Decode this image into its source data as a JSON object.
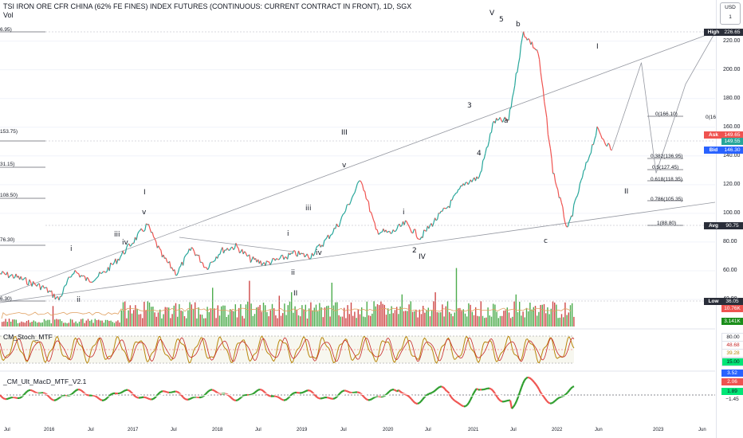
{
  "header": {
    "title": "TSI IRON ORE CFR CHINA (62% FE FINES) INDEX FUTURES (CONTINUOUS: CURRENT CONTRACT IN FRONT), 1D, SGX",
    "vol_label": "Vol"
  },
  "currency": {
    "label": "USD",
    "sub": "1"
  },
  "indicators": {
    "stoch": "CM_Stoch_MTF",
    "macd": "_CM_Ult_MacD_MTF_V2.1"
  },
  "colors": {
    "up": "#26a69a",
    "down": "#ef5350",
    "volume_up": "#2e9e2e",
    "volume_down": "#c62828",
    "trendline": "#9598a1",
    "stoch_line": "#b8860b"
  },
  "price_axis": {
    "ticks": [
      "220.00",
      "200.00",
      "180.00",
      "160.00",
      "140.00",
      "120.00",
      "100.00",
      "80.00",
      "60.00",
      "40.00"
    ],
    "tags": [
      {
        "label": "High",
        "value": "226.65",
        "color": "#2a2e39"
      },
      {
        "label": "Ask",
        "value": "149.65",
        "color": "#ef5350"
      },
      {
        "label": "",
        "value": "149.55",
        "color": "#26a69a"
      },
      {
        "label": "Bid",
        "value": "146.30",
        "color": "#2962ff"
      },
      {
        "label": "Avg",
        "value": "90.75",
        "color": "#2a2e39"
      },
      {
        "label": "Low",
        "value": "36.05",
        "color": "#2a2e39"
      }
    ],
    "volume_tags": [
      {
        "value": "10.76K",
        "color": "#ef5350"
      },
      {
        "value": "3.141K",
        "color": "#1b8e1b"
      }
    ],
    "stoch_tags": [
      {
        "value": "80.00",
        "color": "#ffffff",
        "text": "#131722"
      },
      {
        "value": "48.68",
        "color": "#ffffff",
        "text": "#c62828"
      },
      {
        "value": "39.28",
        "color": "#ffffff",
        "text": "#b8860b"
      },
      {
        "value": "15.00",
        "color": "#00e676",
        "text": "#131722"
      }
    ],
    "macd_tags": [
      {
        "value": "3.52",
        "color": "#2962ff",
        "text": "#ffffff"
      },
      {
        "value": "2.06",
        "color": "#ef5350",
        "text": "#ffffff"
      },
      {
        "value": "1.89",
        "color": "#00e676",
        "text": "#131722"
      },
      {
        "value": "−1.45",
        "color": "#ffffff",
        "text": "#131722"
      }
    ]
  },
  "time_axis": [
    "Jul",
    "2016",
    "Jul",
    "2017",
    "Jul",
    "2018",
    "Jul",
    "2019",
    "Jul",
    "2020",
    "Jul",
    "2021",
    "Jul",
    "2022",
    "Jun",
    "2023",
    "Jun"
  ],
  "left_fib_labels": [
    "6.95)",
    "153.75)",
    "31.15)",
    "108.50)",
    "76.30)",
    "6.30)"
  ],
  "fib_levels": [
    "0(166.10)",
    "0.382(136.95)",
    "0.5(127.45)",
    "0.618(118.35)",
    "0.786(105.35)",
    "1(88.80)"
  ],
  "fib_cut": "0(16",
  "wave_labels": [
    "V",
    "5",
    "b",
    "I",
    "III",
    "v",
    "v",
    "iii",
    "iii",
    "iv",
    "i",
    "ii",
    "iv",
    "i",
    "ii",
    "II",
    "iii",
    "i",
    "2",
    "IV",
    "3",
    "4",
    "a",
    "c",
    "I",
    "II"
  ],
  "chart_data": {
    "type": "line",
    "title": "TSI IRON ORE CFR CHINA (62% FE FINES) INDEX FUTURES (CONTINUOUS: CURRENT CONTRACT IN FRONT), 1D, SGX",
    "x_axis": "date",
    "y_unit": "USD",
    "series": [
      {
        "x": [
          "2015-06",
          "2015-08",
          "2015-10",
          "2015-12",
          "2016-02",
          "2016-04",
          "2016-06",
          "2016-08",
          "2016-10",
          "2016-12",
          "2017-02",
          "2017-04",
          "2017-06",
          "2017-08",
          "2017-10",
          "2017-12",
          "2018-02",
          "2018-04",
          "2018-06",
          "2018-08",
          "2018-10",
          "2018-12",
          "2019-02",
          "2019-04",
          "2019-07",
          "2019-09",
          "2019-11",
          "2020-01",
          "2020-03",
          "2020-05",
          "2020-07",
          "2020-09",
          "2020-11",
          "2021-01",
          "2021-03",
          "2021-05",
          "2021-07",
          "2021-09",
          "2021-11",
          "2022-01",
          "2022-03",
          "2022-05"
        ],
        "y": [
          58,
          56,
          52,
          48,
          40,
          60,
          53,
          58,
          68,
          80,
          92,
          70,
          58,
          76,
          62,
          74,
          77,
          68,
          65,
          68,
          72,
          70,
          80,
          93,
          124,
          88,
          86,
          93,
          83,
          95,
          106,
          121,
          125,
          164,
          165,
          226,
          212,
          130,
          88,
          125,
          158,
          144
        ]
      }
    ],
    "projection": {
      "x": [
        "2022-05",
        "2022-09",
        "2022-11",
        "2023-03",
        "2023-07"
      ],
      "y": [
        144,
        205,
        128,
        190,
        226
      ]
    },
    "ylim": [
      30,
      232
    ],
    "xlim": [
      "2015-06",
      "2023-07"
    ]
  }
}
